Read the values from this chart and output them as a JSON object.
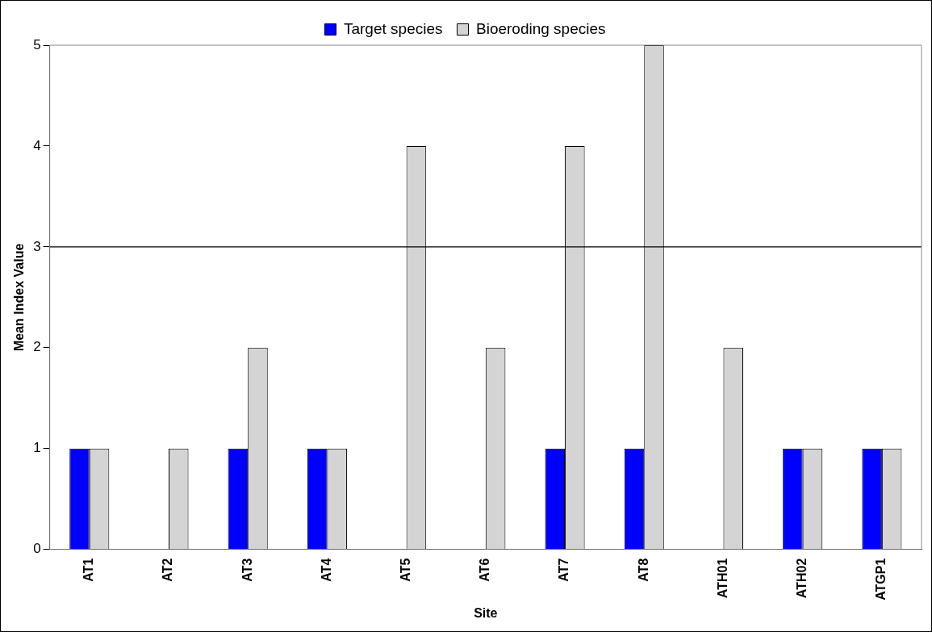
{
  "chart_data": {
    "type": "bar",
    "xlabel": "Site",
    "ylabel": "Mean Index Value",
    "categories": [
      "AT1",
      "AT2",
      "AT3",
      "AT4",
      "AT5",
      "AT6",
      "AT7",
      "AT8",
      "ATH01",
      "ATH02",
      "ATGP1"
    ],
    "series": [
      {
        "name": "Target species",
        "color": "#0000ff",
        "values": [
          1,
          0,
          1,
          1,
          0,
          0,
          1,
          1,
          0,
          1,
          1
        ]
      },
      {
        "name": "Bioeroding species",
        "color": "#d4d4d4",
        "values": [
          1,
          1,
          2,
          1,
          4,
          2,
          4,
          5,
          2,
          1,
          1
        ]
      }
    ],
    "ylim": [
      0,
      5
    ],
    "yticks": [
      0,
      1,
      2,
      3,
      4,
      5
    ],
    "ref_lines": [
      {
        "axis": "y",
        "value": 3,
        "color": "#000000"
      }
    ],
    "grid": false,
    "legend": "top"
  }
}
